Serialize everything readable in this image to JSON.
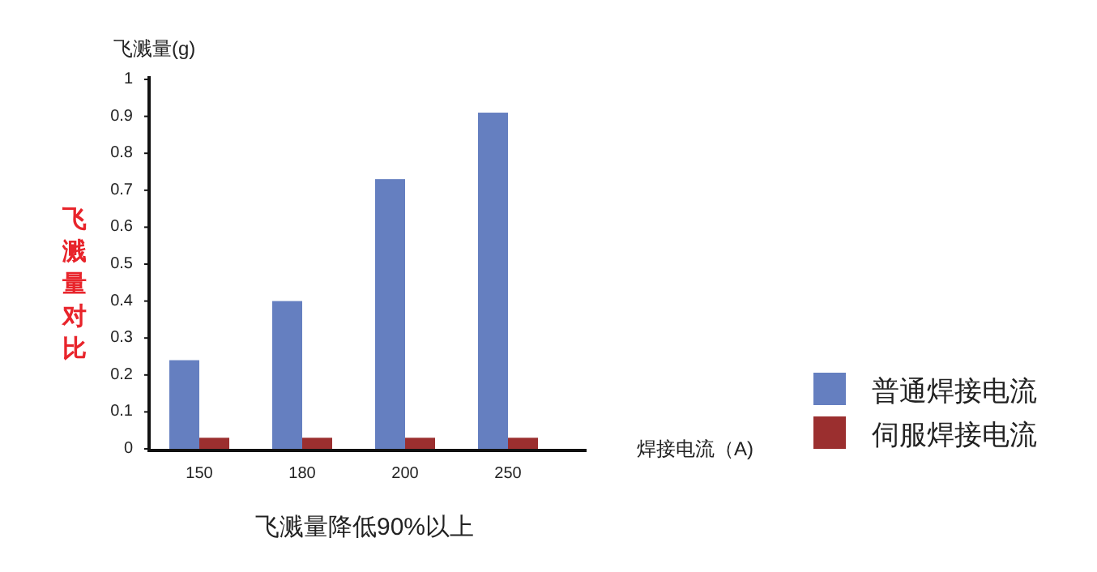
{
  "chart_data": {
    "type": "bar",
    "title": "飞溅量对比",
    "ylabel": "飞溅量(g)",
    "xlabel": "焊接电流（A)",
    "annotations": [
      "飞溅量降低90%以上"
    ],
    "categories": [
      "150",
      "180",
      "200",
      "250"
    ],
    "series": [
      {
        "name": "普通焊接电流",
        "color": "#657fc0",
        "values": [
          0.24,
          0.4,
          0.73,
          0.91
        ]
      },
      {
        "name": "伺服焊接电流",
        "color": "#9b2f2f",
        "values": [
          0.03,
          0.03,
          0.03,
          0.03
        ]
      }
    ],
    "ylim": [
      0,
      1
    ],
    "yticks": [
      0,
      0.1,
      0.2,
      0.3,
      0.4,
      0.5,
      0.6,
      0.7,
      0.8,
      0.9,
      1
    ],
    "grid": false,
    "legend": "right"
  }
}
